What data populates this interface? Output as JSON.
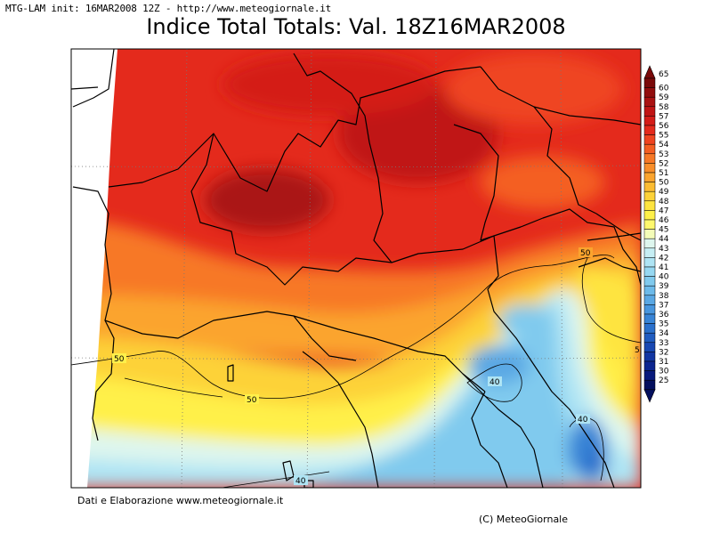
{
  "header": {
    "init_line": "MTG-LAM init: 16MAR2008 12Z - http://www.meteogiornale.it",
    "title": "Indice Total Totals: Val. 18Z16MAR2008"
  },
  "footer": {
    "credits": "Dati e Elaborazione www.meteogiornale.it",
    "copyright": "(C) MeteoGiornale"
  },
  "contour_labels": [
    "50",
    "50",
    "50",
    "40",
    "40",
    "40",
    "5"
  ],
  "colorbar": {
    "levels": [
      "65",
      "60",
      "59",
      "58",
      "57",
      "56",
      "55",
      "54",
      "53",
      "52",
      "51",
      "50",
      "49",
      "48",
      "47",
      "46",
      "45",
      "44",
      "43",
      "42",
      "41",
      "40",
      "39",
      "38",
      "37",
      "36",
      "35",
      "34",
      "33",
      "32",
      "31",
      "30",
      "25"
    ],
    "colors": [
      "#7a0a0a",
      "#920e0e",
      "#aa1212",
      "#c01414",
      "#d41c18",
      "#e42a1c",
      "#ef4420",
      "#f45e22",
      "#f77826",
      "#f98e2a",
      "#fba42e",
      "#fcbc32",
      "#fdd238",
      "#fee440",
      "#fff04a",
      "#fff86e",
      "#f4fcb8",
      "#def6ee",
      "#c6eef4",
      "#aee4f4",
      "#96d8f2",
      "#80caee",
      "#6cbaea",
      "#5aa8e4",
      "#4896de",
      "#3884d6",
      "#2a70cc",
      "#205cc0",
      "#1848b2",
      "#1236a2",
      "#0c2690",
      "#081a7c",
      "#04105e"
    ],
    "low_color": "#04105e",
    "high_color": "#7a0a0a"
  },
  "map_colors": {
    "frame_outside": "#ffffff",
    "border_line": "#000000",
    "grid_line": "#888888"
  }
}
